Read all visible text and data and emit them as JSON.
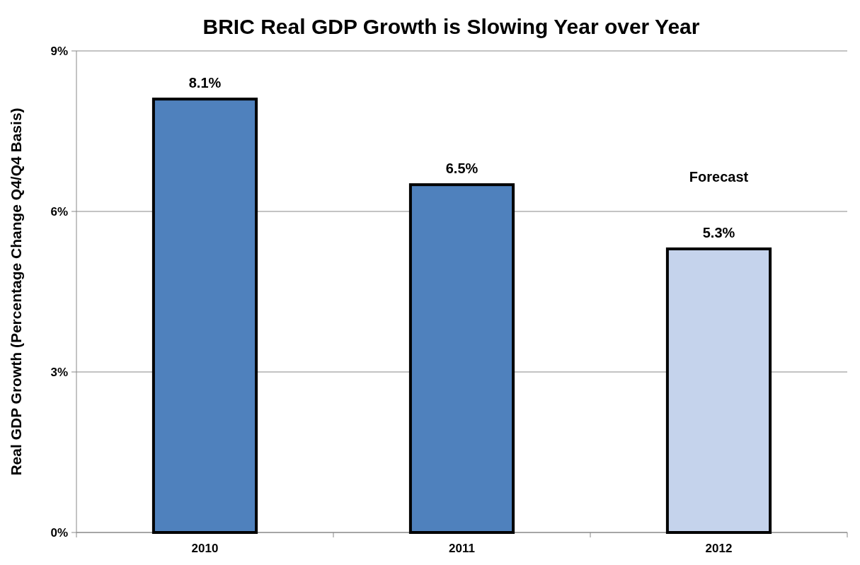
{
  "chart_data": {
    "type": "bar",
    "title": "BRIC Real GDP Growth is Slowing Year over Year",
    "ylabel": "Real GDP Growth (Percentage Change Q4/Q4 Basis)",
    "categories": [
      "2010",
      "2011",
      "2012"
    ],
    "values": [
      8.1,
      6.5,
      5.3
    ],
    "colors": [
      "#4f81bd",
      "#4f81bd",
      "#c5d3ec"
    ],
    "value_labels": [
      "8.1%",
      "6.5%",
      "5.3%"
    ],
    "ylim": [
      0,
      9
    ],
    "yticks": [
      {
        "value": 0,
        "label": "0%"
      },
      {
        "value": 3,
        "label": "3%"
      },
      {
        "value": 6,
        "label": "6%"
      },
      {
        "value": 9,
        "label": "9%"
      }
    ],
    "grid": "y",
    "annotations": [
      "Forecast"
    ]
  }
}
